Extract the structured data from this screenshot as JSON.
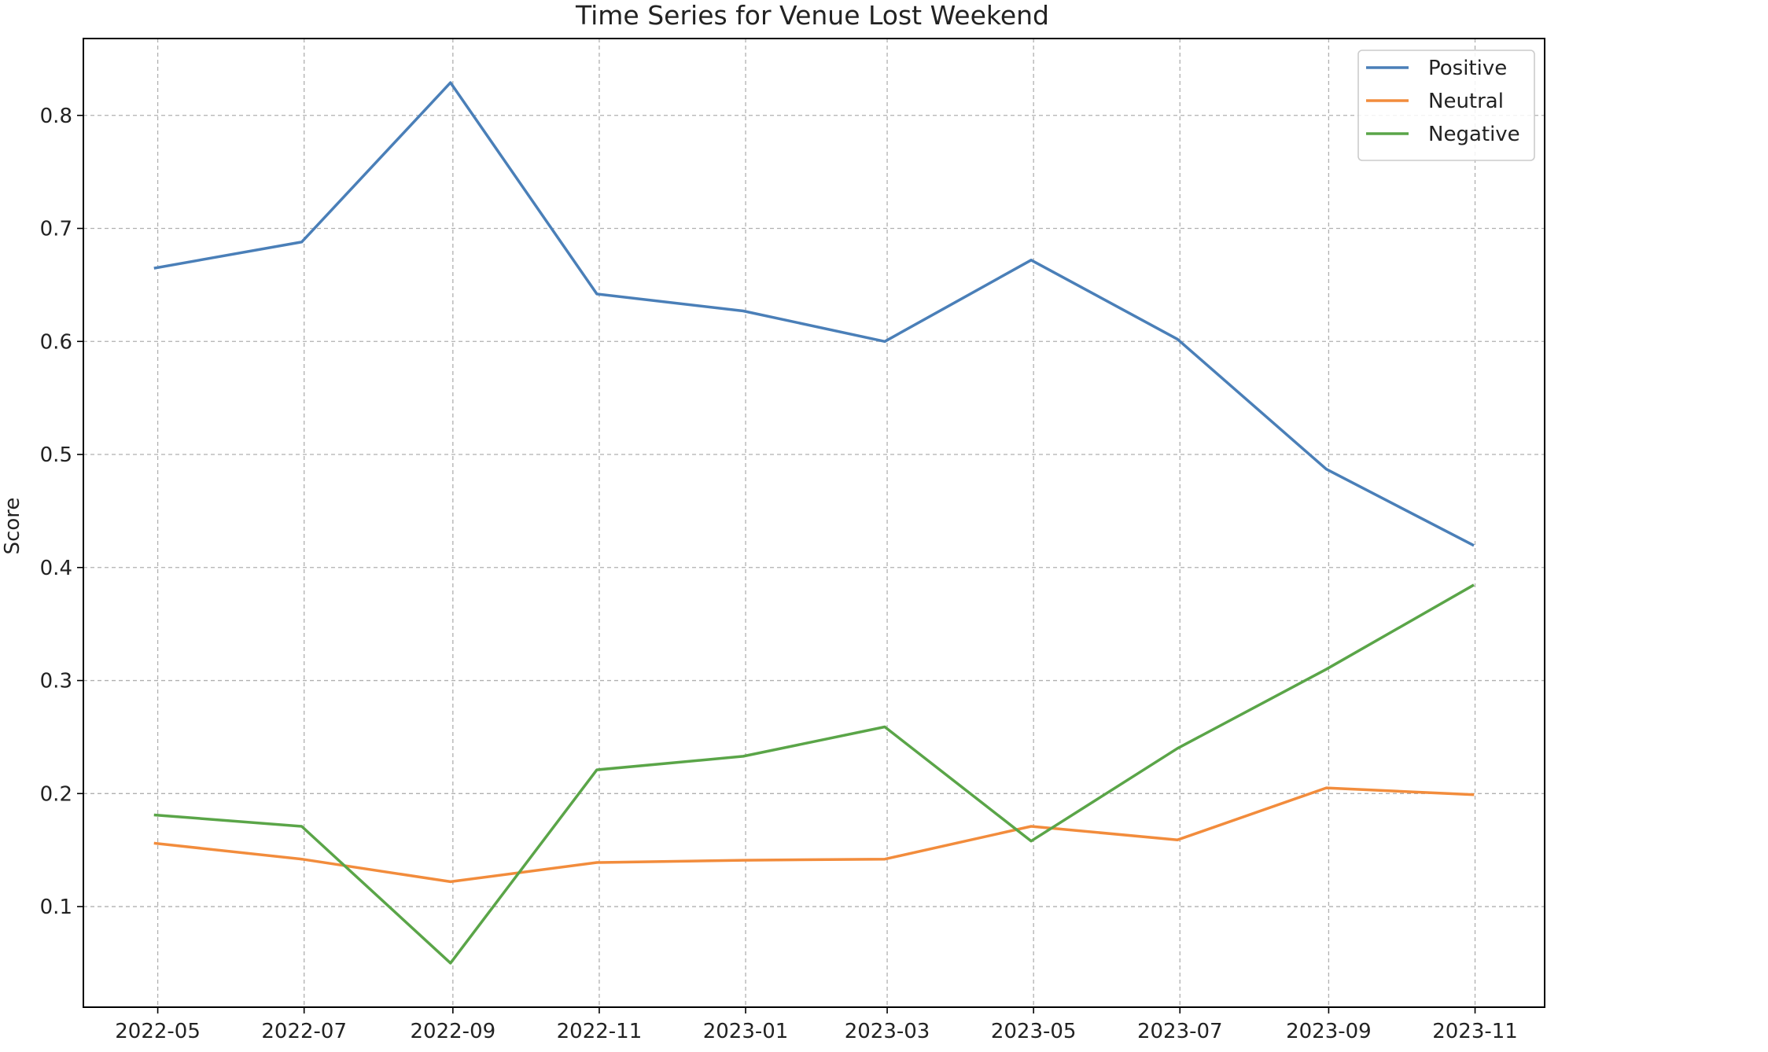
{
  "chart_data": {
    "type": "line",
    "title": "Time Series for Venue Lost Weekend",
    "xlabel": "",
    "ylabel": "Score",
    "x": [
      "2022-04-30",
      "2022-06-30",
      "2022-08-31",
      "2022-10-31",
      "2022-12-31",
      "2023-02-28",
      "2023-04-30",
      "2023-06-30",
      "2023-08-31",
      "2023-10-31"
    ],
    "x_ticks": [
      "2022-05",
      "2022-07",
      "2022-09",
      "2022-11",
      "2023-01",
      "2023-03",
      "2023-05",
      "2023-07",
      "2023-09",
      "2023-11"
    ],
    "y_ticks": [
      "0.1",
      "0.2",
      "0.3",
      "0.4",
      "0.5",
      "0.6",
      "0.7",
      "0.8"
    ],
    "xlim": [
      "2022-03-31",
      "2023-11-30"
    ],
    "ylim": [
      0.011,
      0.868
    ],
    "grid": true,
    "legend_position": "top-right",
    "series": [
      {
        "name": "Positive",
        "color": "#4a7fb8",
        "values": [
          0.665,
          0.688,
          0.829,
          0.642,
          0.627,
          0.6,
          0.672,
          0.602,
          0.487,
          0.42
        ]
      },
      {
        "name": "Neutral",
        "color": "#f28c3c",
        "values": [
          0.156,
          0.142,
          0.122,
          0.139,
          0.141,
          0.142,
          0.171,
          0.159,
          0.205,
          0.199
        ]
      },
      {
        "name": "Negative",
        "color": "#5aa548",
        "values": [
          0.181,
          0.171,
          0.05,
          0.221,
          0.233,
          0.259,
          0.158,
          0.24,
          0.31,
          0.384
        ]
      }
    ]
  }
}
